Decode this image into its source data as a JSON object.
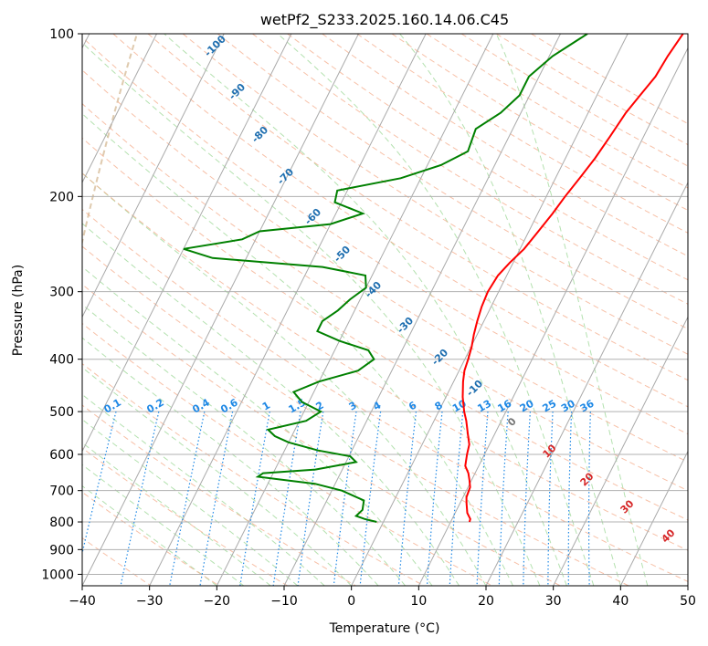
{
  "chart_data": {
    "type": "line",
    "subtype": "skew-t log-p",
    "title": "wetPf2_S233.2025.160.14.06.C45",
    "xlabel": "Temperature (°C)",
    "ylabel": "Pressure (hPa)",
    "xlim": [
      -40,
      50
    ],
    "ylim": [
      1050,
      100
    ],
    "y_scale": "log",
    "grid": true,
    "x_ticks": [
      -40,
      -30,
      -20,
      -10,
      0,
      10,
      20,
      30,
      40,
      50
    ],
    "y_ticks": [
      100,
      200,
      300,
      400,
      500,
      600,
      700,
      800,
      900,
      1000
    ],
    "colors": {
      "temperature": "#ff0000",
      "dewpoint": "#008000",
      "dry_adiabat": "#f4a582",
      "moist_adiabat": "#a1d99b",
      "mixing_ratio": "#1e88e5",
      "isotherm": "#aaaaaa",
      "special_isotherm": "#d2b48c"
    },
    "series": [
      {
        "name": "",
        "color": "#ff0000",
        "points": [
          [
            1000,
            null
          ],
          [
            800,
            12.8
          ],
          [
            790,
            12.7
          ],
          [
            770,
            11.8
          ],
          [
            740,
            11.0
          ],
          [
            720,
            10.5
          ],
          [
            690,
            10.3
          ],
          [
            670,
            9.7
          ],
          [
            650,
            9.0
          ],
          [
            630,
            8.0
          ],
          [
            600,
            7.4
          ],
          [
            575,
            7.0
          ],
          [
            550,
            6.0
          ],
          [
            520,
            4.8
          ],
          [
            500,
            3.8
          ],
          [
            470,
            2.5
          ],
          [
            440,
            1.4
          ],
          [
            420,
            0.8
          ],
          [
            400,
            0.5
          ],
          [
            380,
            0.1
          ],
          [
            360,
            -0.5
          ],
          [
            340,
            -1.0
          ],
          [
            320,
            -1.4
          ],
          [
            300,
            -1.6
          ],
          [
            280,
            -1.3
          ],
          [
            265,
            -0.5
          ],
          [
            250,
            0.6
          ],
          [
            230,
            1.5
          ],
          [
            215,
            2.2
          ],
          [
            200,
            2.8
          ],
          [
            185,
            3.6
          ],
          [
            170,
            4.4
          ],
          [
            155,
            5.0
          ],
          [
            140,
            5.6
          ],
          [
            130,
            6.4
          ],
          [
            120,
            7.3
          ],
          [
            110,
            7.6
          ],
          [
            100,
            8.2
          ]
        ]
      },
      {
        "name": "",
        "color": "#008000",
        "points": [
          [
            800,
            -1.0
          ],
          [
            790,
            -3.0
          ],
          [
            780,
            -4.5
          ],
          [
            760,
            -4.0
          ],
          [
            730,
            -4.5
          ],
          [
            700,
            -8.5
          ],
          [
            680,
            -13.0
          ],
          [
            660,
            -22.0
          ],
          [
            650,
            -21.5
          ],
          [
            640,
            -14.0
          ],
          [
            620,
            -8.5
          ],
          [
            605,
            -9.8
          ],
          [
            590,
            -15.0
          ],
          [
            570,
            -20.0
          ],
          [
            555,
            -22.5
          ],
          [
            540,
            -24.0
          ],
          [
            520,
            -19.0
          ],
          [
            500,
            -17.5
          ],
          [
            480,
            -21.0
          ],
          [
            460,
            -23.0
          ],
          [
            440,
            -20.0
          ],
          [
            420,
            -15.0
          ],
          [
            400,
            -13.5
          ],
          [
            385,
            -15.0
          ],
          [
            370,
            -20.0
          ],
          [
            355,
            -24.0
          ],
          [
            340,
            -24.0
          ],
          [
            325,
            -22.5
          ],
          [
            310,
            -21.5
          ],
          [
            295,
            -20.0
          ],
          [
            280,
            -21.0
          ],
          [
            270,
            -28.0
          ],
          [
            260,
            -45.0
          ],
          [
            250,
            -50.0
          ],
          [
            240,
            -42.0
          ],
          [
            232,
            -40.0
          ],
          [
            225,
            -30.0
          ],
          [
            215,
            -26.0
          ],
          [
            205,
            -31.0
          ],
          [
            195,
            -31.5
          ],
          [
            185,
            -23.0
          ],
          [
            175,
            -18.0
          ],
          [
            165,
            -15.0
          ],
          [
            150,
            -15.5
          ],
          [
            140,
            -13.0
          ],
          [
            130,
            -11.5
          ],
          [
            120,
            -11.5
          ],
          [
            110,
            -9.5
          ],
          [
            100,
            -6.0
          ]
        ]
      }
    ],
    "dry_adiabat_labels": [
      "-100",
      "-90",
      "-80",
      "-70",
      "-60",
      "-50",
      "-40",
      "-30",
      "-20",
      "-10"
    ],
    "moist_adiabat_labels": [
      "0",
      "10",
      "20",
      "30",
      "40"
    ],
    "mixing_ratio_labels": [
      "0.1",
      "0.2",
      "0.4",
      "0.6",
      "1",
      "1.5",
      "2",
      "3",
      "4",
      "6",
      "8",
      "10",
      "13",
      "16",
      "20",
      "25",
      "30",
      "36"
    ]
  }
}
